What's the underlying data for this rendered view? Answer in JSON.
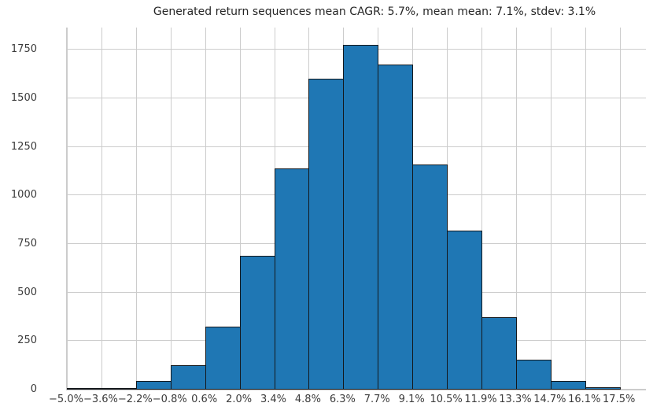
{
  "title": "Generated return sequences mean CAGR: 5.7%, mean mean: 7.1%, stdev: 3.1%",
  "colors": {
    "bar_fill": "#1f77b4",
    "bar_edge": "#14181c",
    "grid": "#cccccc",
    "tick_label": "#3b3b3b",
    "title_text": "#262626",
    "background": "#ffffff"
  },
  "chart_data": {
    "type": "bar",
    "subtype": "histogram",
    "title": "Generated return sequences mean CAGR: 5.7%, mean mean: 7.1%, stdev: 3.1%",
    "x_tick_labels": [
      "−5.0%",
      "−3.6%",
      "−2.2%",
      "−0.8%",
      "0.6%",
      "2.0%",
      "3.4%",
      "4.8%",
      "6.3%",
      "7.7%",
      "9.1%",
      "10.5%",
      "11.9%",
      "13.3%",
      "14.7%",
      "16.1%",
      "17.5%"
    ],
    "y_tick_labels": [
      "0",
      "250",
      "500",
      "750",
      "1000",
      "1250",
      "1500",
      "1750"
    ],
    "y_tick_values": [
      0,
      250,
      500,
      750,
      1000,
      1250,
      1500,
      1750
    ],
    "bin_labels": [
      "−5.0% to −3.6%",
      "−3.6% to −2.2%",
      "−2.2% to −0.8%",
      "−0.8% to 0.6%",
      "0.6% to 2.0%",
      "2.0% to 3.4%",
      "3.4% to 4.8%",
      "4.8% to 6.3%",
      "6.3% to 7.7%",
      "7.7% to 9.1%",
      "9.1% to 10.5%",
      "10.5% to 11.9%",
      "11.9% to 13.3%",
      "13.3% to 14.7%",
      "14.7% to 16.1%",
      "16.1% to 17.5%"
    ],
    "values": [
      5,
      8,
      45,
      125,
      325,
      690,
      1140,
      1600,
      1775,
      1675,
      1160,
      820,
      372,
      155,
      46,
      11
    ],
    "ylim": [
      0,
      1865
    ],
    "xlabel": "",
    "ylabel": "",
    "grid": true,
    "legend": false
  }
}
